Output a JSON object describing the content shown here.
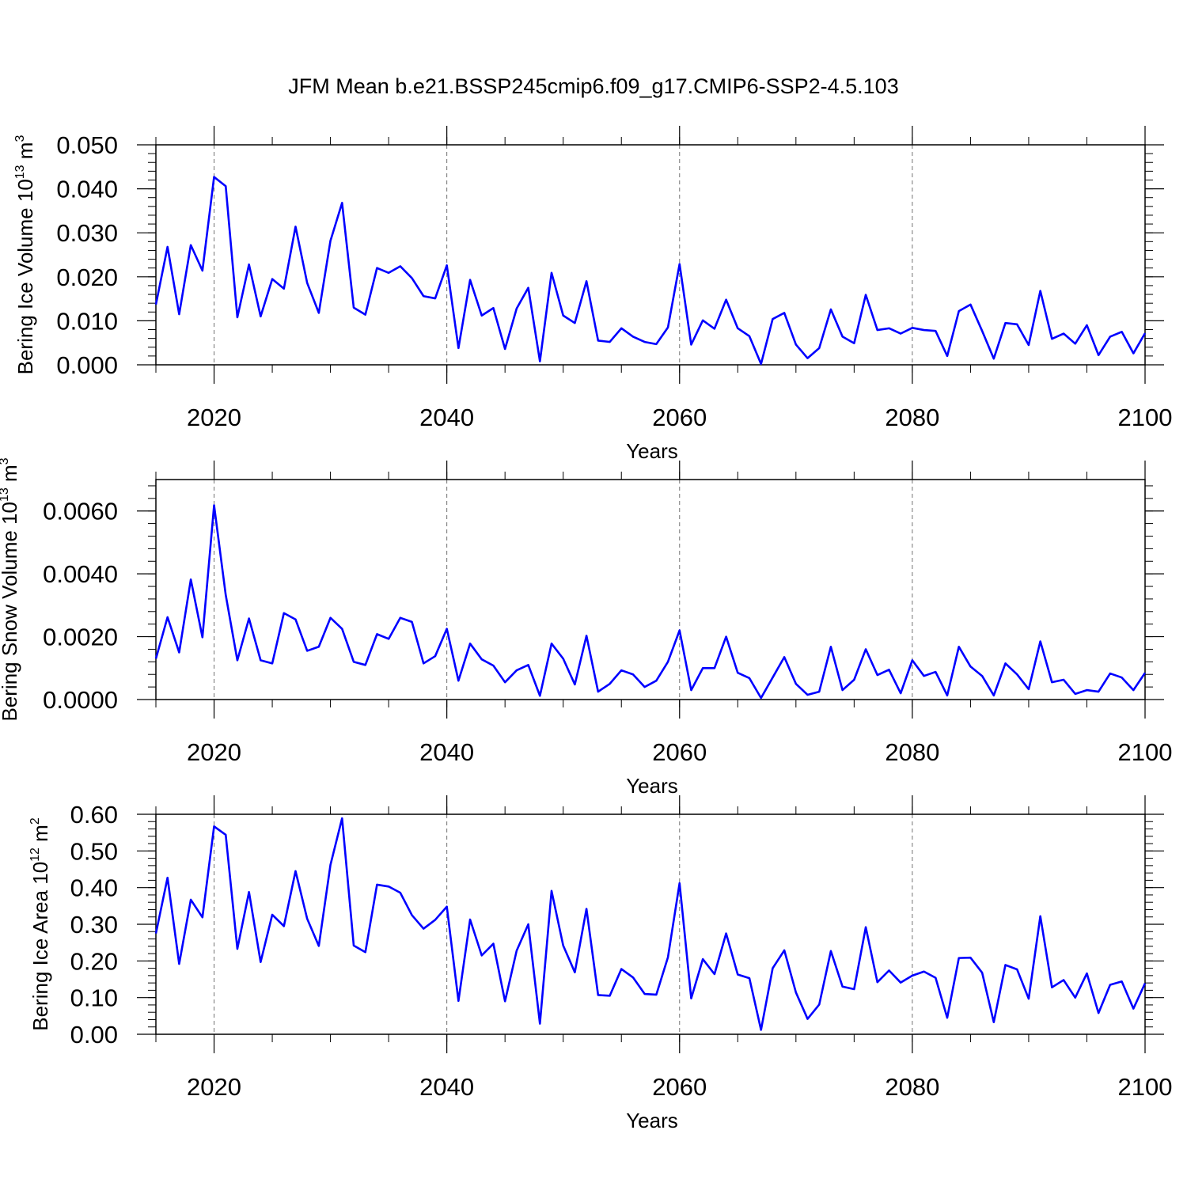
{
  "title": "JFM Mean b.e21.BSSP245cmip6.f09_g17.CMIP6-SSP2-4.5.103",
  "line_color": "#0000ff",
  "chart_data": [
    {
      "type": "line",
      "ylabel": "Bering Ice Volume 10",
      "ylabel_exp": "13",
      "ylabel_unit": "m",
      "ylabel_unit_exp": "3",
      "xlabel": "Years",
      "xlim": [
        2015,
        2100
      ],
      "ylim": [
        0,
        0.05
      ],
      "x_ticks": [
        2020,
        2040,
        2060,
        2080,
        2100
      ],
      "x_tick_labels": [
        "2020",
        "2040",
        "2060",
        "2080",
        "2100"
      ],
      "y_ticks": [
        0,
        0.01,
        0.02,
        0.03,
        0.04,
        0.05
      ],
      "y_tick_labels": [
        "0.000",
        "0.010",
        "0.020",
        "0.030",
        "0.040",
        "0.050"
      ],
      "grid": "dashed vertical at labeled years",
      "series": [
        {
          "x_start": 2015,
          "values": [
            0.0137,
            0.0268,
            0.0115,
            0.0272,
            0.0214,
            0.0427,
            0.0406,
            0.0108,
            0.0228,
            0.011,
            0.0195,
            0.0173,
            0.0314,
            0.0186,
            0.0118,
            0.0282,
            0.0368,
            0.013,
            0.0114,
            0.022,
            0.0209,
            0.0224,
            0.0197,
            0.0156,
            0.0151,
            0.0226,
            0.0038,
            0.0193,
            0.0112,
            0.0129,
            0.0036,
            0.0128,
            0.0175,
            0.0008,
            0.0209,
            0.0112,
            0.0095,
            0.019,
            0.0055,
            0.0052,
            0.0083,
            0.0064,
            0.0052,
            0.0047,
            0.0085,
            0.0229,
            0.0046,
            0.0101,
            0.0082,
            0.0148,
            0.0083,
            0.0065,
            0.0002,
            0.0104,
            0.0118,
            0.0046,
            0.0015,
            0.0038,
            0.0126,
            0.0064,
            0.0049,
            0.0159,
            0.0079,
            0.0083,
            0.0071,
            0.0084,
            0.0079,
            0.0077,
            0.002,
            0.0122,
            0.0137,
            0.0077,
            0.0014,
            0.0095,
            0.0092,
            0.0045,
            0.0168,
            0.0059,
            0.0071,
            0.0048,
            0.009,
            0.0022,
            0.0064,
            0.0075,
            0.0026,
            0.0072
          ]
        }
      ]
    },
    {
      "type": "line",
      "ylabel": "Bering Snow Volume 10",
      "ylabel_exp": "13",
      "ylabel_unit": "m",
      "ylabel_unit_exp": "3",
      "xlabel": "Years",
      "xlim": [
        2015,
        2100
      ],
      "ylim": [
        0,
        0.007
      ],
      "x_ticks": [
        2020,
        2040,
        2060,
        2080,
        2100
      ],
      "x_tick_labels": [
        "2020",
        "2040",
        "2060",
        "2080",
        "2100"
      ],
      "y_ticks": [
        0,
        0.002,
        0.004,
        0.006
      ],
      "y_tick_labels": [
        "0.0000",
        "0.0020",
        "0.0040",
        "0.0060"
      ],
      "grid": "dashed vertical at labeled years",
      "series": [
        {
          "x_start": 2015,
          "values": [
            0.0013,
            0.00262,
            0.0015,
            0.00382,
            0.00198,
            0.00618,
            0.00333,
            0.00125,
            0.00258,
            0.00125,
            0.00115,
            0.00275,
            0.00255,
            0.00155,
            0.00168,
            0.0026,
            0.00225,
            0.0012,
            0.0011,
            0.00208,
            0.00193,
            0.0026,
            0.00247,
            0.00115,
            0.00138,
            0.00225,
            0.0006,
            0.00178,
            0.00128,
            0.00108,
            0.00055,
            0.00093,
            0.0011,
            0.00012,
            0.00178,
            0.0013,
            0.00048,
            0.00203,
            0.00025,
            0.0005,
            0.00093,
            0.0008,
            0.0004,
            0.0006,
            0.0012,
            0.0022,
            0.0003,
            0.001,
            0.001,
            0.002,
            0.00085,
            0.00068,
            5e-05,
            0.0007,
            0.00135,
            0.0005,
            0.00015,
            0.00025,
            0.00168,
            0.0003,
            0.00063,
            0.0016,
            0.00078,
            0.00095,
            0.0002,
            0.00125,
            0.00075,
            0.00088,
            0.00013,
            0.00168,
            0.00105,
            0.00075,
            0.00013,
            0.00115,
            0.0008,
            0.00033,
            0.00185,
            0.00055,
            0.00063,
            0.00018,
            0.0003,
            0.00025,
            0.00083,
            0.0007,
            0.0003,
            0.00085
          ]
        }
      ]
    },
    {
      "type": "line",
      "ylabel": "Bering Ice Area 10",
      "ylabel_exp": "12",
      "ylabel_unit": "m",
      "ylabel_unit_exp": "2",
      "xlabel": "Years",
      "xlim": [
        2015,
        2100
      ],
      "ylim": [
        0,
        0.6
      ],
      "x_ticks": [
        2020,
        2040,
        2060,
        2080,
        2100
      ],
      "x_tick_labels": [
        "2020",
        "2040",
        "2060",
        "2080",
        "2100"
      ],
      "y_ticks": [
        0,
        0.1,
        0.2,
        0.3,
        0.4,
        0.5,
        0.6
      ],
      "y_tick_labels": [
        "0.00",
        "0.10",
        "0.20",
        "0.30",
        "0.40",
        "0.50",
        "0.60"
      ],
      "grid": "dashed vertical at labeled years",
      "series": [
        {
          "x_start": 2015,
          "values": [
            0.275,
            0.427,
            0.192,
            0.367,
            0.319,
            0.567,
            0.544,
            0.233,
            0.388,
            0.197,
            0.326,
            0.295,
            0.445,
            0.315,
            0.241,
            0.462,
            0.589,
            0.242,
            0.224,
            0.408,
            0.403,
            0.386,
            0.325,
            0.288,
            0.312,
            0.348,
            0.091,
            0.313,
            0.215,
            0.247,
            0.09,
            0.228,
            0.3,
            0.029,
            0.391,
            0.242,
            0.169,
            0.342,
            0.107,
            0.105,
            0.178,
            0.155,
            0.11,
            0.108,
            0.21,
            0.412,
            0.098,
            0.205,
            0.164,
            0.275,
            0.163,
            0.153,
            0.012,
            0.18,
            0.229,
            0.114,
            0.042,
            0.081,
            0.227,
            0.13,
            0.123,
            0.292,
            0.142,
            0.174,
            0.141,
            0.16,
            0.171,
            0.154,
            0.045,
            0.208,
            0.209,
            0.168,
            0.033,
            0.189,
            0.177,
            0.097,
            0.322,
            0.128,
            0.148,
            0.1,
            0.166,
            0.058,
            0.135,
            0.144,
            0.07,
            0.139
          ]
        }
      ]
    }
  ]
}
